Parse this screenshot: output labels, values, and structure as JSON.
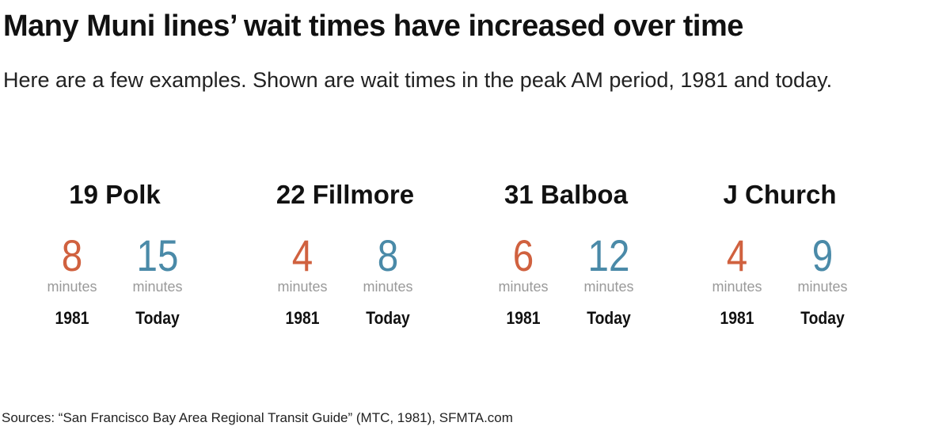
{
  "header": {
    "title": "Many Muni lines’ wait times have increased over time",
    "subtitle": "Here are a few examples. Shown are wait times in the peak AM period, 1981 and today."
  },
  "lines": [
    {
      "name": "19 Polk",
      "times": [
        {
          "value": 8,
          "unit": "minutes",
          "period": "1981"
        },
        {
          "value": 15,
          "unit": "minutes",
          "period": "Today"
        }
      ]
    },
    {
      "name": "22 Fillmore",
      "times": [
        {
          "value": 4,
          "unit": "minutes",
          "period": "1981"
        },
        {
          "value": 8,
          "unit": "minutes",
          "period": "Today"
        }
      ]
    },
    {
      "name": "31 Balboa",
      "times": [
        {
          "value": 6,
          "unit": "minutes",
          "period": "1981"
        },
        {
          "value": 12,
          "unit": "minutes",
          "period": "Today"
        }
      ]
    },
    {
      "name": "J Church",
      "times": [
        {
          "value": 4,
          "unit": "minutes",
          "period": "1981"
        },
        {
          "value": 9,
          "unit": "minutes",
          "period": "Today"
        }
      ]
    }
  ],
  "footer": {
    "source": "Sources: “San Francisco Bay Area Regional Transit Guide” (MTC, 1981), SFMTA.com"
  }
}
